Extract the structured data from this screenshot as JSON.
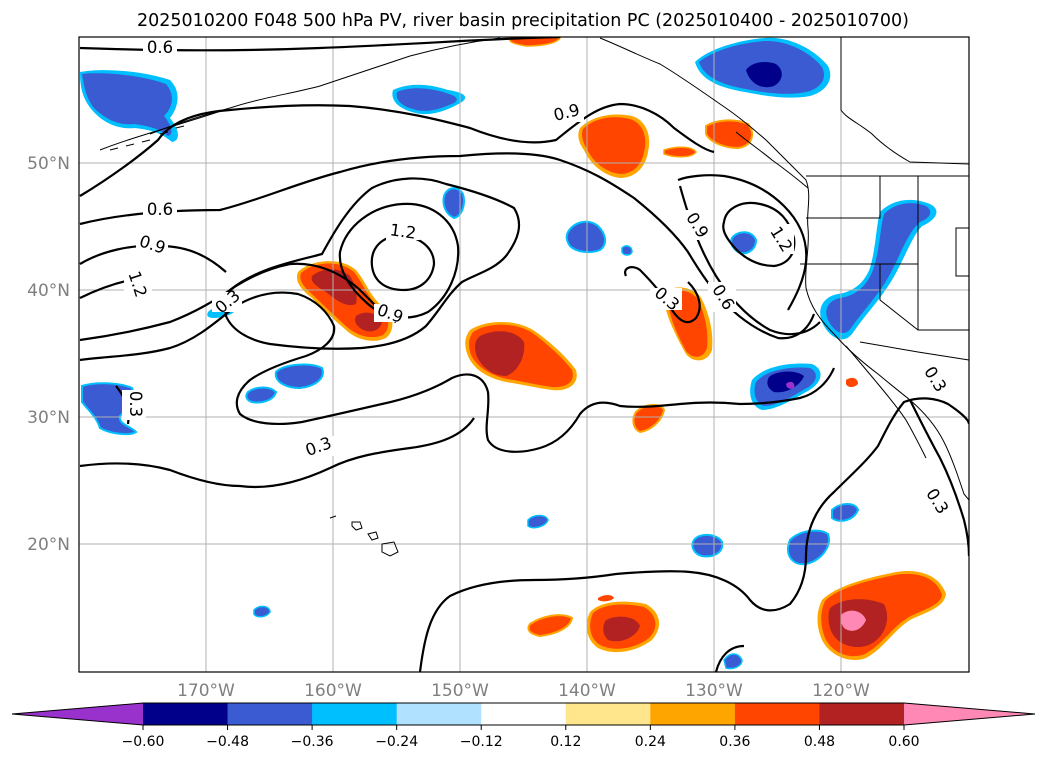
{
  "figure": {
    "title": "2025010200 F048 500 hPa PV, river basin precipitation PC (2025010400 - 2025010700)"
  },
  "map": {
    "lon_ticks": [
      "170°W",
      "160°W",
      "150°W",
      "140°W",
      "130°W",
      "120°W"
    ],
    "lat_ticks": [
      "50°N",
      "40°N",
      "30°N",
      "20°N"
    ],
    "contour_labels": [
      "0.6",
      "0.6",
      "0.9",
      "1.2",
      "0.3",
      "1.2",
      "0.9",
      "0.9",
      "0.3",
      "0.9",
      "1.2",
      "0.6",
      "0.3",
      "0.3",
      "0.3",
      "0.3"
    ],
    "colors": {
      "neg_extend": "#9932cc",
      "pos_extend": "#ff89b4"
    }
  },
  "colorbar": {
    "ticks": [
      "−0.60",
      "−0.48",
      "−0.36",
      "−0.24",
      "−0.12",
      "0.12",
      "0.24",
      "0.36",
      "0.48",
      "0.60"
    ],
    "colors": [
      "#00008b",
      "#3a5bd1",
      "#00bfff",
      "#b0e2ff",
      "#ffffff",
      "#ffe68c",
      "#ffa500",
      "#ff4500",
      "#b22222"
    ]
  }
}
